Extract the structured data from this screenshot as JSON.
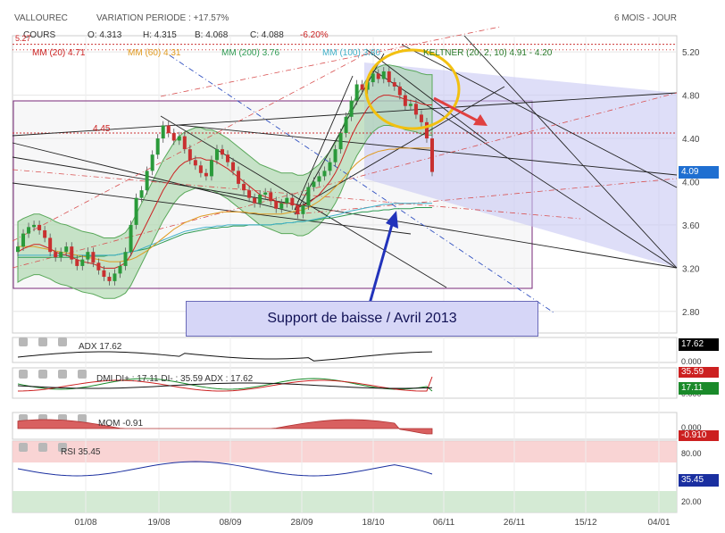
{
  "header": {
    "symbol": "VALLOUREC",
    "variation": "VARIATION PERIODE : +17.57%",
    "period": "6 MOIS - JOUR"
  },
  "quote": {
    "label": "COURS",
    "open": "O: 4.313",
    "high": "H: 4.315",
    "low": "B: 4.068",
    "close": "C: 4.088",
    "change": "-6.20%"
  },
  "main_legend": [
    {
      "text": "MM (20)",
      "value": "4.71",
      "color": "#cc2222"
    },
    {
      "text": "MM (60)",
      "value": "4.31",
      "color": "#e09a20"
    },
    {
      "text": "MM (200)",
      "value": "3.76",
      "color": "#2e9b53"
    },
    {
      "text": "MM (100)",
      "value": "3.80",
      "color": "#3fb0c8"
    },
    {
      "text": "KELTNER (20, 2, 10)",
      "value": "4.91 - 4.20",
      "color": "#2a7a2a"
    }
  ],
  "levels": {
    "level_445": "4.45",
    "level_527": "5.27"
  },
  "annotation": "Support de baisse / Avril 2013",
  "last_price_tag": "4.09",
  "chart_data": {
    "type": "candlestick",
    "x_tick_labels": [
      "01/08",
      "19/08",
      "08/09",
      "28/09",
      "18/10",
      "06/11",
      "26/11",
      "15/12",
      "04/01"
    ],
    "y_tick_labels": [
      "2.80",
      "3.20",
      "3.60",
      "4.00",
      "4.40",
      "4.80",
      "5.20"
    ],
    "ylim": [
      2.6,
      5.35
    ],
    "grid": true,
    "closes": [
      3.4,
      3.52,
      3.58,
      3.6,
      3.55,
      3.48,
      3.35,
      3.3,
      3.35,
      3.4,
      3.28,
      3.22,
      3.28,
      3.35,
      3.25,
      3.18,
      3.12,
      3.08,
      3.15,
      3.22,
      3.35,
      3.6,
      3.85,
      3.92,
      4.1,
      4.25,
      4.4,
      4.52,
      4.45,
      4.38,
      4.42,
      4.3,
      4.2,
      4.15,
      4.08,
      4.05,
      4.2,
      4.3,
      4.25,
      4.18,
      4.1,
      3.98,
      3.92,
      3.85,
      3.8,
      3.88,
      3.9,
      3.82,
      3.75,
      3.8,
      3.85,
      3.78,
      3.7,
      3.78,
      3.95,
      4.0,
      4.05,
      4.1,
      4.18,
      4.3,
      4.45,
      4.6,
      4.75,
      4.9,
      4.85,
      4.92,
      5.0,
      4.95,
      5.02,
      4.92,
      4.88,
      4.8,
      4.7,
      4.72,
      4.62,
      4.55,
      4.4,
      4.09
    ],
    "ma20": [
      3.35,
      3.38,
      3.4,
      3.42,
      3.42,
      3.4,
      3.38,
      3.35,
      3.33,
      3.32,
      3.3,
      3.28,
      3.26,
      3.25,
      3.24,
      3.22,
      3.2,
      3.2,
      3.2,
      3.22,
      3.25,
      3.32,
      3.42,
      3.52,
      3.62,
      3.72,
      3.82,
      3.92,
      4.0,
      4.08,
      4.14,
      4.18,
      4.2,
      4.22,
      4.22,
      4.2,
      4.2,
      4.18,
      4.15,
      4.12,
      4.08,
      4.04,
      4.0,
      3.96,
      3.92,
      3.88,
      3.86,
      3.84,
      3.82,
      3.8,
      3.8,
      3.8,
      3.78,
      3.78,
      3.8,
      3.84,
      3.88,
      3.94,
      4.0,
      4.08,
      4.18,
      4.3,
      4.42,
      4.52,
      4.6,
      4.68,
      4.74,
      4.78,
      4.8,
      4.8,
      4.79,
      4.78,
      4.76,
      4.75,
      4.74,
      4.72,
      4.71,
      4.71
    ],
    "ma60": [
      3.4,
      3.4,
      3.4,
      3.4,
      3.39,
      3.38,
      3.37,
      3.36,
      3.35,
      3.34,
      3.33,
      3.32,
      3.31,
      3.3,
      3.29,
      3.28,
      3.27,
      3.26,
      3.26,
      3.26,
      3.27,
      3.28,
      3.3,
      3.33,
      3.36,
      3.4,
      3.44,
      3.48,
      3.52,
      3.56,
      3.59,
      3.62,
      3.64,
      3.66,
      3.68,
      3.69,
      3.7,
      3.71,
      3.72,
      3.72,
      3.72,
      3.72,
      3.72,
      3.71,
      3.71,
      3.7,
      3.7,
      3.7,
      3.7,
      3.7,
      3.71,
      3.72,
      3.73,
      3.74,
      3.76,
      3.79,
      3.82,
      3.86,
      3.9,
      3.95,
      4.0,
      4.06,
      4.12,
      4.17,
      4.21,
      4.24,
      4.26,
      4.28,
      4.29,
      4.3,
      4.3,
      4.31,
      4.31,
      4.31,
      4.31,
      4.31,
      4.31,
      4.31
    ],
    "ma200": [
      3.3,
      3.3,
      3.3,
      3.3,
      3.3,
      3.3,
      3.3,
      3.3,
      3.3,
      3.3,
      3.3,
      3.3,
      3.31,
      3.31,
      3.31,
      3.31,
      3.31,
      3.32,
      3.32,
      3.33,
      3.34,
      3.35,
      3.36,
      3.37,
      3.38,
      3.4,
      3.42,
      3.44,
      3.46,
      3.48,
      3.5,
      3.52,
      3.53,
      3.54,
      3.55,
      3.56,
      3.57,
      3.57,
      3.58,
      3.58,
      3.59,
      3.59,
      3.59,
      3.6,
      3.6,
      3.6,
      3.6,
      3.6,
      3.61,
      3.61,
      3.62,
      3.62,
      3.63,
      3.63,
      3.64,
      3.64,
      3.65,
      3.66,
      3.66,
      3.67,
      3.68,
      3.69,
      3.7,
      3.71,
      3.72,
      3.72,
      3.73,
      3.73,
      3.74,
      3.74,
      3.75,
      3.75,
      3.75,
      3.75,
      3.76,
      3.76,
      3.76,
      3.76
    ],
    "ma100": [
      3.32,
      3.32,
      3.32,
      3.32,
      3.32,
      3.32,
      3.32,
      3.32,
      3.32,
      3.32,
      3.32,
      3.32,
      3.32,
      3.32,
      3.32,
      3.32,
      3.32,
      3.32,
      3.32,
      3.33,
      3.34,
      3.35,
      3.36,
      3.38,
      3.4,
      3.42,
      3.44,
      3.46,
      3.48,
      3.5,
      3.52,
      3.54,
      3.55,
      3.56,
      3.57,
      3.58,
      3.58,
      3.59,
      3.59,
      3.6,
      3.6,
      3.6,
      3.6,
      3.6,
      3.6,
      3.6,
      3.6,
      3.6,
      3.61,
      3.61,
      3.62,
      3.62,
      3.63,
      3.63,
      3.64,
      3.65,
      3.66,
      3.67,
      3.68,
      3.69,
      3.7,
      3.72,
      3.73,
      3.74,
      3.75,
      3.76,
      3.77,
      3.78,
      3.79,
      3.79,
      3.8,
      3.8,
      3.8,
      3.8,
      3.8,
      3.8,
      3.8,
      3.8
    ]
  },
  "panels": {
    "adx": {
      "label": "ADX",
      "value": "17.62",
      "tag": "17.62",
      "zero": "0.000"
    },
    "dmi": {
      "label": "DMI",
      "text": "DI+ : 17.11  DI- : 35.59  ADX : 17.62",
      "tag_top": "35.59",
      "tag_bottom": "17.11",
      "zero": "0.000"
    },
    "mom": {
      "label": "MOM",
      "value": "-0.91",
      "tag": "-0.910",
      "zero": "0.000"
    },
    "rsi": {
      "label": "RSI",
      "value": "35.45",
      "tag": "35.45",
      "level_top": "80.00",
      "level_bottom": "20.00"
    }
  }
}
